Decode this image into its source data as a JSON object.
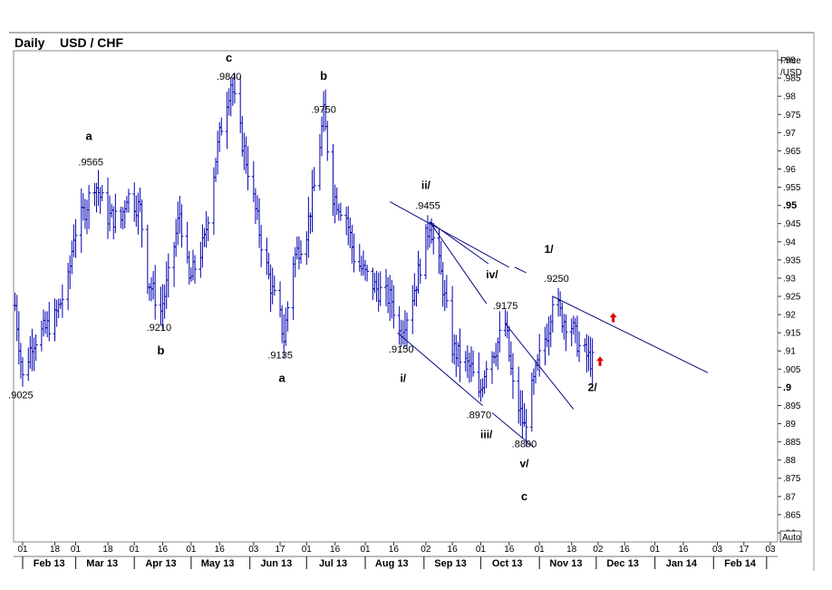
{
  "header": {
    "period": "Daily",
    "symbol": "USD / CHF"
  },
  "axis": {
    "price_label_line1": "Price",
    "price_label_line2": "/USD",
    "auto_label": "Auto"
  },
  "chart_data": {
    "type": "ohlc",
    "title": "USD / CHF",
    "period": "Daily",
    "ylim": [
      0.8575,
      0.9925
    ],
    "y_ticks": [
      0.86,
      0.865,
      0.87,
      0.875,
      0.88,
      0.885,
      0.89,
      0.895,
      0.9,
      0.905,
      0.91,
      0.915,
      0.92,
      0.925,
      0.93,
      0.935,
      0.94,
      0.945,
      0.95,
      0.955,
      0.96,
      0.965,
      0.97,
      0.975,
      0.98,
      0.985,
      0.99
    ],
    "y_tick_labels": [
      ".86",
      ".865",
      ".87",
      ".875",
      ".88",
      ".885",
      ".89",
      ".895",
      ".9",
      ".905",
      ".91",
      ".915",
      ".92",
      ".925",
      ".93",
      ".935",
      ".94",
      ".945",
      ".95",
      ".955",
      ".96",
      ".965",
      ".97",
      ".975",
      ".98",
      ".985",
      ".99"
    ],
    "y_tick_major": [
      ".9",
      ".95"
    ],
    "x_day_ticks": [
      {
        "date": "2013-02-01",
        "label": "01"
      },
      {
        "date": "2013-02-18",
        "label": "18"
      },
      {
        "date": "2013-03-01",
        "label": "01"
      },
      {
        "date": "2013-03-18",
        "label": "18"
      },
      {
        "date": "2013-04-01",
        "label": "01"
      },
      {
        "date": "2013-04-16",
        "label": "16"
      },
      {
        "date": "2013-05-01",
        "label": "01"
      },
      {
        "date": "2013-05-16",
        "label": "16"
      },
      {
        "date": "2013-06-03",
        "label": "03"
      },
      {
        "date": "2013-06-17",
        "label": "17"
      },
      {
        "date": "2013-07-01",
        "label": "01"
      },
      {
        "date": "2013-07-16",
        "label": "16"
      },
      {
        "date": "2013-08-01",
        "label": "01"
      },
      {
        "date": "2013-08-16",
        "label": "16"
      },
      {
        "date": "2013-09-02",
        "label": "02"
      },
      {
        "date": "2013-09-16",
        "label": "16"
      },
      {
        "date": "2013-10-01",
        "label": "01"
      },
      {
        "date": "2013-10-16",
        "label": "16"
      },
      {
        "date": "2013-11-01",
        "label": "01"
      },
      {
        "date": "2013-11-18",
        "label": "18"
      },
      {
        "date": "2013-12-02",
        "label": "02"
      },
      {
        "date": "2013-12-16",
        "label": "16"
      },
      {
        "date": "2014-01-01",
        "label": "01"
      },
      {
        "date": "2014-01-16",
        "label": "16"
      },
      {
        "date": "2014-02-03",
        "label": "03"
      },
      {
        "date": "2014-02-17",
        "label": "17"
      },
      {
        "date": "2014-03-03",
        "label": "03"
      }
    ],
    "x_month_labels": [
      {
        "date": "2013-02-15",
        "label": "Feb 13"
      },
      {
        "date": "2013-03-15",
        "label": "Mar 13"
      },
      {
        "date": "2013-04-15",
        "label": "Apr 13"
      },
      {
        "date": "2013-05-15",
        "label": "May 13"
      },
      {
        "date": "2013-06-15",
        "label": "Jun 13"
      },
      {
        "date": "2013-07-15",
        "label": "Jul 13"
      },
      {
        "date": "2013-08-15",
        "label": "Aug 13"
      },
      {
        "date": "2013-09-15",
        "label": "Sep 13"
      },
      {
        "date": "2013-10-15",
        "label": "Oct 13"
      },
      {
        "date": "2013-11-15",
        "label": "Nov 13"
      },
      {
        "date": "2013-12-15",
        "label": "Dec 13"
      },
      {
        "date": "2014-01-15",
        "label": "Jan 14"
      },
      {
        "date": "2014-02-15",
        "label": "Feb 14"
      }
    ],
    "price_path": [
      [
        "2013-01-28",
        0.9225
      ],
      [
        "2013-02-01",
        0.9025
      ],
      [
        "2013-02-06",
        0.9125
      ],
      [
        "2013-02-12",
        0.9155
      ],
      [
        "2013-02-18",
        0.919
      ],
      [
        "2013-02-25",
        0.929
      ],
      [
        "2013-02-28",
        0.942
      ],
      [
        "2013-03-06",
        0.949
      ],
      [
        "2013-03-11",
        0.9565
      ],
      [
        "2013-03-18",
        0.947
      ],
      [
        "2013-03-25",
        0.946
      ],
      [
        "2013-03-28",
        0.953
      ],
      [
        "2013-04-04",
        0.949
      ],
      [
        "2013-04-08",
        0.93
      ],
      [
        "2013-04-15",
        0.921
      ],
      [
        "2013-04-19",
        0.93
      ],
      [
        "2013-04-25",
        0.948
      ],
      [
        "2013-04-30",
        0.929
      ],
      [
        "2013-05-08",
        0.94
      ],
      [
        "2013-05-14",
        0.963
      ],
      [
        "2013-05-17",
        0.972
      ],
      [
        "2013-05-22",
        0.984
      ],
      [
        "2013-05-27",
        0.97
      ],
      [
        "2013-05-31",
        0.96
      ],
      [
        "2013-06-07",
        0.94
      ],
      [
        "2013-06-12",
        0.928
      ],
      [
        "2013-06-17",
        0.919
      ],
      [
        "2013-06-19",
        0.9135
      ],
      [
        "2013-06-24",
        0.935
      ],
      [
        "2013-07-01",
        0.943
      ],
      [
        "2013-07-05",
        0.955
      ],
      [
        "2013-07-10",
        0.975
      ],
      [
        "2013-07-15",
        0.953
      ],
      [
        "2013-07-22",
        0.947
      ],
      [
        "2013-07-26",
        0.936
      ],
      [
        "2013-08-01",
        0.931
      ],
      [
        "2013-08-07",
        0.927
      ],
      [
        "2013-08-15",
        0.924
      ],
      [
        "2013-08-19",
        0.915
      ],
      [
        "2013-08-23",
        0.92
      ],
      [
        "2013-08-28",
        0.929
      ],
      [
        "2013-09-04",
        0.9455
      ],
      [
        "2013-09-10",
        0.931
      ],
      [
        "2013-09-16",
        0.911
      ],
      [
        "2013-09-20",
        0.908
      ],
      [
        "2013-09-26",
        0.905
      ],
      [
        "2013-09-30",
        0.897
      ],
      [
        "2013-10-04",
        0.907
      ],
      [
        "2013-10-09",
        0.911
      ],
      [
        "2013-10-14",
        0.9175
      ],
      [
        "2013-10-18",
        0.9
      ],
      [
        "2013-10-24",
        0.889
      ],
      [
        "2013-10-28",
        0.899
      ],
      [
        "2013-11-01",
        0.908
      ],
      [
        "2013-11-06",
        0.917
      ],
      [
        "2013-11-08",
        0.925
      ],
      [
        "2013-11-13",
        0.919
      ],
      [
        "2013-11-18",
        0.917
      ],
      [
        "2013-11-22",
        0.911
      ],
      [
        "2013-11-27",
        0.908
      ],
      [
        "2013-11-29",
        0.907
      ]
    ],
    "trend_lines": [
      {
        "x1": "2013-08-14",
        "y1": 0.951,
        "x2": "2013-10-16",
        "y2": 0.933
      },
      {
        "x1": "2013-10-19",
        "y1": 0.933,
        "x2": "2013-10-25",
        "y2": 0.9315
      },
      {
        "x1": "2013-09-04",
        "y1": 0.9455,
        "x2": "2013-10-05",
        "y2": 0.934
      },
      {
        "x1": "2013-09-04",
        "y1": 0.9455,
        "x2": "2013-10-04",
        "y2": 0.923
      },
      {
        "x1": "2013-08-18",
        "y1": 0.915,
        "x2": "2013-10-02",
        "y2": 0.895
      },
      {
        "x1": "2013-10-07",
        "y1": 0.893,
        "x2": "2013-10-29",
        "y2": 0.8835
      },
      {
        "x1": "2013-10-14",
        "y1": 0.9175,
        "x2": "2013-11-19",
        "y2": 0.894
      },
      {
        "x1": "2013-11-08",
        "y1": 0.925,
        "x2": "2014-01-29",
        "y2": 0.904
      }
    ],
    "wave_labels": [
      {
        "text": "a",
        "x": "2013-03-08",
        "y": 0.968,
        "cls": "wave-label"
      },
      {
        "text": "c",
        "x": "2013-05-21",
        "y": 0.9895,
        "cls": "wave-label"
      },
      {
        "text": "b",
        "x": "2013-07-10",
        "y": 0.9845,
        "cls": "wave-label"
      },
      {
        "text": "b",
        "x": "2013-04-15",
        "y": 0.909,
        "cls": "wave-label"
      },
      {
        "text": "a",
        "x": "2013-06-18",
        "y": 0.9015,
        "cls": "wave-label"
      },
      {
        "text": "ii/",
        "x": "2013-09-02",
        "y": 0.9545,
        "cls": "wave-label-small"
      },
      {
        "text": "i/",
        "x": "2013-08-21",
        "y": 0.9015,
        "cls": "wave-label-small"
      },
      {
        "text": "iv/",
        "x": "2013-10-07",
        "y": 0.93,
        "cls": "wave-label-small"
      },
      {
        "text": "iii/",
        "x": "2013-10-04",
        "y": 0.886,
        "cls": "wave-label-small"
      },
      {
        "text": "v/",
        "x": "2013-10-24",
        "y": 0.878,
        "cls": "wave-label-small"
      },
      {
        "text": "c",
        "x": "2013-10-24",
        "y": 0.869,
        "cls": "wave-label"
      },
      {
        "text": "1/",
        "x": "2013-11-06",
        "y": 0.937,
        "cls": "wave-label-small"
      },
      {
        "text": "2/",
        "x": "2013-11-29",
        "y": 0.899,
        "cls": "wave-label-small"
      }
    ],
    "price_labels": [
      {
        "text": ".9025",
        "x": "2013-01-31",
        "y": 0.897
      },
      {
        "text": ".9565",
        "x": "2013-03-09",
        "y": 0.961
      },
      {
        "text": ".9840",
        "x": "2013-05-21",
        "y": 0.9845
      },
      {
        "text": ".9750",
        "x": "2013-07-10",
        "y": 0.9755
      },
      {
        "text": ".9210",
        "x": "2013-04-14",
        "y": 0.9155
      },
      {
        "text": ".9135",
        "x": "2013-06-17",
        "y": 0.908
      },
      {
        "text": ".9455",
        "x": "2013-09-03",
        "y": 0.949
      },
      {
        "text": ".9150",
        "x": "2013-08-20",
        "y": 0.9095
      },
      {
        "text": ".8970",
        "x": "2013-09-30",
        "y": 0.8915
      },
      {
        "text": ".9175",
        "x": "2013-10-14",
        "y": 0.9215
      },
      {
        "text": ".8890",
        "x": "2013-10-24",
        "y": 0.8835
      },
      {
        "text": ".9250",
        "x": "2013-11-10",
        "y": 0.929
      }
    ],
    "arrows": [
      {
        "x": "2013-12-10",
        "y": 0.919,
        "color": "#dd0000"
      },
      {
        "x": "2013-12-03",
        "y": 0.907,
        "color": "#dd0000"
      }
    ],
    "colors": {
      "bars": "#0000b0",
      "lines": "#0a0a80",
      "text": "#000000",
      "arrow": "#dd0000"
    }
  }
}
